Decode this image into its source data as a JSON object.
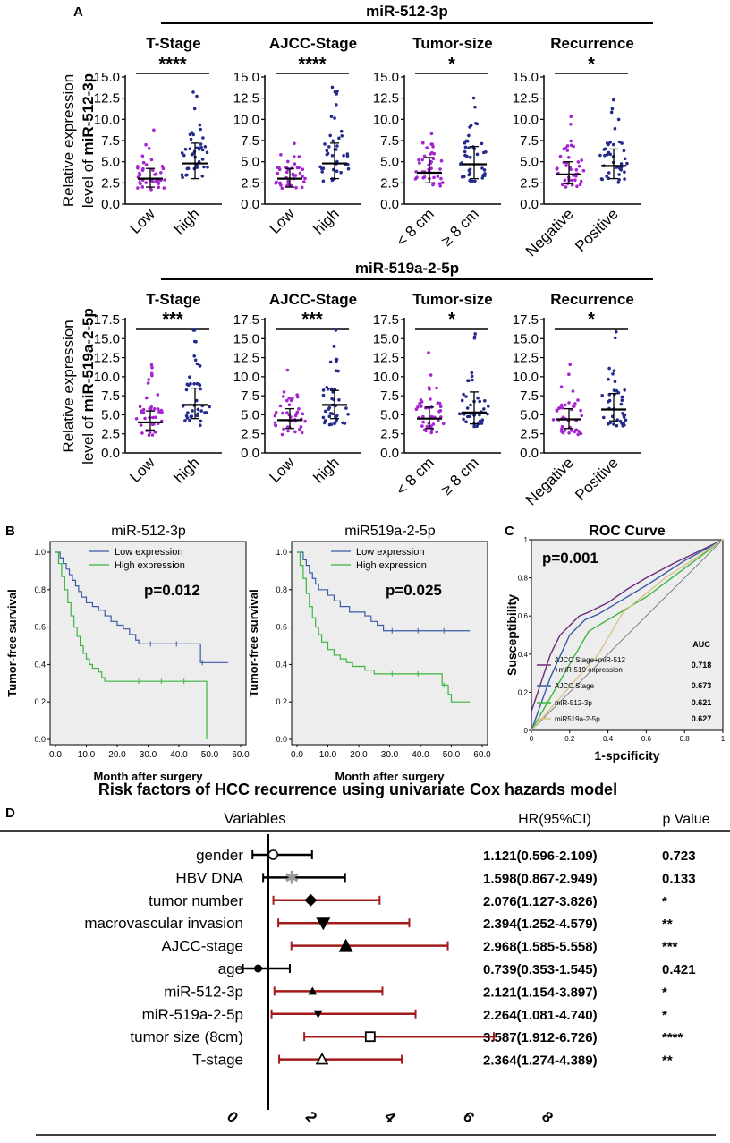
{
  "panel_labels": {
    "a": "A",
    "b": "B",
    "c": "C",
    "d": "D"
  },
  "panel_a": {
    "rows": [
      {
        "title": "miR-512-3p",
        "ylabel_line1": "Relative expression",
        "ylabel_prefix": "level of ",
        "ylabel_bold": "miR-512-3p",
        "yticks": [
          "0.0",
          "2.5",
          "5.0",
          "7.5",
          "10.0",
          "12.5",
          "15.0"
        ],
        "ymax": 15,
        "groups": [
          {
            "title": "T-Stage",
            "cats": [
              "Low",
              "high"
            ],
            "sig": "****",
            "medians": [
              3.0,
              4.8
            ],
            "lo": [
              2.0,
              3.0
            ],
            "hi": [
              4.2,
              7.2
            ]
          },
          {
            "title": "AJCC-Stage",
            "cats": [
              "Low",
              "high"
            ],
            "sig": "****",
            "medians": [
              3.0,
              4.8
            ],
            "lo": [
              2.0,
              3.0
            ],
            "hi": [
              4.2,
              7.2
            ]
          },
          {
            "title": "Tumor-size",
            "cats": [
              "< 8 cm",
              "≥ 8 cm"
            ],
            "sig": "*",
            "medians": [
              3.7,
              4.7
            ],
            "lo": [
              2.5,
              3.0
            ],
            "hi": [
              5.5,
              6.8
            ]
          },
          {
            "title": "Recurrence",
            "cats": [
              "Negative",
              "Positive"
            ],
            "sig": "*",
            "medians": [
              3.5,
              4.5
            ],
            "lo": [
              2.4,
              3.0
            ],
            "hi": [
              5.0,
              6.5
            ]
          }
        ]
      },
      {
        "title": "miR-519a-2-5p",
        "ylabel_line1": "Relative expression",
        "ylabel_prefix": "level of ",
        "ylabel_bold": "miR-519a-2-5p",
        "yticks": [
          "0.0",
          "2.5",
          "5.0",
          "7.5",
          "10.0",
          "12.5",
          "15.0",
          "17.5"
        ],
        "ymax": 17.5,
        "groups": [
          {
            "title": "T-Stage",
            "cats": [
              "Low",
              "high"
            ],
            "sig": "***",
            "medians": [
              4.0,
              6.3
            ],
            "lo": [
              3.0,
              4.5
            ],
            "hi": [
              5.5,
              8.5
            ]
          },
          {
            "title": "AJCC-Stage",
            "cats": [
              "Low",
              "high"
            ],
            "sig": "***",
            "medians": [
              4.3,
              6.3
            ],
            "lo": [
              3.2,
              4.5
            ],
            "hi": [
              5.8,
              8.2
            ]
          },
          {
            "title": "Tumor-size",
            "cats": [
              "< 8 cm",
              "≥ 8 cm"
            ],
            "sig": "*",
            "medians": [
              4.5,
              5.3
            ],
            "lo": [
              3.2,
              3.8
            ],
            "hi": [
              6.0,
              8.0
            ]
          },
          {
            "title": "Recurrence",
            "cats": [
              "Negative",
              "Positive"
            ],
            "sig": "*",
            "medians": [
              4.4,
              5.7
            ],
            "lo": [
              3.2,
              4.2
            ],
            "hi": [
              5.8,
              7.8
            ]
          }
        ]
      }
    ]
  },
  "panel_b": {
    "ylabel": "Tumor-free survival",
    "xlabel": "Month after surgery",
    "yticks": [
      "0.0",
      "0.2",
      "0.4",
      "0.6",
      "0.8",
      "1.0"
    ],
    "xticks": [
      "0.0",
      "10.0",
      "20.0",
      "30.0",
      "40.0",
      "50.0",
      "60.0"
    ],
    "plots": [
      {
        "title": "miR-512-3p",
        "p": "p=0.012",
        "series": [
          {
            "name": "Low expression",
            "color": "#3a5aa8",
            "steps": [
              [
                0,
                1.0
              ],
              [
                1.5,
                0.97
              ],
              [
                2.5,
                0.94
              ],
              [
                3.5,
                0.91
              ],
              [
                4.5,
                0.88
              ],
              [
                5.5,
                0.85
              ],
              [
                6.5,
                0.82
              ],
              [
                7.5,
                0.79
              ],
              [
                8.5,
                0.76
              ],
              [
                10,
                0.73
              ],
              [
                12,
                0.71
              ],
              [
                14,
                0.69
              ],
              [
                16,
                0.66
              ],
              [
                18,
                0.63
              ],
              [
                20,
                0.61
              ],
              [
                22,
                0.59
              ],
              [
                24,
                0.56
              ],
              [
                26,
                0.53
              ],
              [
                27,
                0.51
              ],
              [
                47,
                0.41
              ],
              [
                56,
                0.41
              ]
            ]
          },
          {
            "name": "High expression",
            "color": "#3db53d",
            "steps": [
              [
                0,
                1.0
              ],
              [
                1,
                0.94
              ],
              [
                2,
                0.87
              ],
              [
                3,
                0.8
              ],
              [
                4,
                0.73
              ],
              [
                5,
                0.66
              ],
              [
                6,
                0.6
              ],
              [
                7,
                0.55
              ],
              [
                8,
                0.5
              ],
              [
                9,
                0.46
              ],
              [
                10,
                0.43
              ],
              [
                11,
                0.4
              ],
              [
                12,
                0.38
              ],
              [
                14,
                0.36
              ],
              [
                15,
                0.33
              ],
              [
                16,
                0.31
              ],
              [
                48,
                0.31
              ],
              [
                49,
                0.0
              ]
            ]
          }
        ]
      },
      {
        "title": "miR519a-2-5p",
        "p": "p=0.025",
        "series": [
          {
            "name": "Low expression",
            "color": "#3a5aa8",
            "steps": [
              [
                0,
                1.0
              ],
              [
                2,
                0.96
              ],
              [
                3,
                0.93
              ],
              [
                4,
                0.89
              ],
              [
                5,
                0.86
              ],
              [
                6,
                0.83
              ],
              [
                7,
                0.8
              ],
              [
                10,
                0.77
              ],
              [
                12,
                0.74
              ],
              [
                14,
                0.71
              ],
              [
                17,
                0.68
              ],
              [
                22,
                0.66
              ],
              [
                24,
                0.63
              ],
              [
                26,
                0.61
              ],
              [
                28,
                0.58
              ],
              [
                56,
                0.58
              ]
            ]
          },
          {
            "name": "High expression",
            "color": "#3db53d",
            "steps": [
              [
                0,
                1.0
              ],
              [
                1,
                0.93
              ],
              [
                2,
                0.86
              ],
              [
                3,
                0.78
              ],
              [
                4,
                0.71
              ],
              [
                5,
                0.65
              ],
              [
                6,
                0.6
              ],
              [
                7,
                0.56
              ],
              [
                8,
                0.52
              ],
              [
                10,
                0.48
              ],
              [
                12,
                0.45
              ],
              [
                14,
                0.43
              ],
              [
                16,
                0.41
              ],
              [
                18,
                0.39
              ],
              [
                22,
                0.37
              ],
              [
                25,
                0.35
              ],
              [
                45,
                0.35
              ],
              [
                47,
                0.29
              ],
              [
                49,
                0.24
              ],
              [
                50,
                0.2
              ],
              [
                56,
                0.2
              ]
            ]
          }
        ]
      }
    ]
  },
  "panel_c": {
    "title": "ROC Curve",
    "p": "p=0.001",
    "ylabel": "Susceptibility",
    "xlabel": "1-spcificity",
    "ticks": [
      "0",
      "0.2",
      "0.4",
      "0.6",
      "0.8",
      "1"
    ],
    "auc_header": "AUC",
    "series": [
      {
        "name": "AJCC Stage+miR-512",
        "name2": "+miR-519 expression",
        "auc": "0.718",
        "color": "#6a2a7a",
        "pts": [
          [
            0,
            0
          ],
          [
            0,
            0.1
          ],
          [
            0.05,
            0.25
          ],
          [
            0.1,
            0.4
          ],
          [
            0.15,
            0.5
          ],
          [
            0.2,
            0.55
          ],
          [
            0.25,
            0.6
          ],
          [
            0.3,
            0.62
          ],
          [
            0.4,
            0.67
          ],
          [
            0.5,
            0.74
          ],
          [
            0.6,
            0.8
          ],
          [
            0.75,
            0.88
          ],
          [
            1,
            1
          ]
        ]
      },
      {
        "name": "AJCC Stage",
        "auc": "0.673",
        "color": "#3a5aa8",
        "pts": [
          [
            0,
            0
          ],
          [
            0.1,
            0.28
          ],
          [
            0.2,
            0.5
          ],
          [
            0.28,
            0.58
          ],
          [
            0.35,
            0.61
          ],
          [
            0.45,
            0.67
          ],
          [
            0.6,
            0.76
          ],
          [
            0.8,
            0.89
          ],
          [
            1,
            1
          ]
        ]
      },
      {
        "name": "miR-512-3p",
        "auc": "0.621",
        "color": "#3db53d",
        "pts": [
          [
            0,
            0
          ],
          [
            0.3,
            0.52
          ],
          [
            0.6,
            0.7
          ],
          [
            1,
            1
          ]
        ]
      },
      {
        "name": "miR519a-2-5p",
        "auc": "0.627",
        "color": "#d8c48a",
        "pts": [
          [
            0,
            0
          ],
          [
            0.35,
            0.4
          ],
          [
            0.48,
            0.62
          ],
          [
            0.7,
            0.8
          ],
          [
            1,
            1
          ]
        ]
      }
    ]
  },
  "panel_d": {
    "title": "Risk factors of HCC recurrence using univariate  Cox hazards model",
    "col_variables": "Variables",
    "col_hr": "HR(95%CI)",
    "col_p": "p Value",
    "xticks": [
      "0",
      "2",
      "4",
      "6",
      "8"
    ],
    "rows": [
      {
        "label": "gender",
        "hr": 1.121,
        "lo": 0.596,
        "hi": 2.109,
        "hr_text": "1.121(0.596-2.109)",
        "p": "0.723",
        "marker": "circle-open",
        "color": "#000000",
        "fill": "#000000"
      },
      {
        "label": "HBV DNA",
        "hr": 1.598,
        "lo": 0.867,
        "hi": 2.949,
        "hr_text": "1.598(0.867-2.949)",
        "p": "0.133",
        "marker": "star",
        "color": "#000000",
        "fill": "#9a9a9a"
      },
      {
        "label": "tumor number",
        "hr": 2.076,
        "lo": 1.127,
        "hi": 3.826,
        "hr_text": "2.076(1.127-3.826)",
        "p": "*",
        "marker": "diamond",
        "color": "#a31a1a",
        "fill": "#000000"
      },
      {
        "label": "macrovascular invasion",
        "hr": 2.394,
        "lo": 1.252,
        "hi": 4.579,
        "hr_text": "2.394(1.252-4.579)",
        "p": "**",
        "marker": "tri-down",
        "color": "#a31a1a",
        "fill": "#000000"
      },
      {
        "label": "AJCC-stage",
        "hr": 2.968,
        "lo": 1.585,
        "hi": 5.558,
        "hr_text": "2.968(1.585-5.558)",
        "p": "***",
        "marker": "tri-up",
        "color": "#a31a1a",
        "fill": "#000000"
      },
      {
        "label": "age",
        "hr": 0.739,
        "lo": 0.353,
        "hi": 1.545,
        "hr_text": "0.739(0.353-1.545)",
        "p": "0.421",
        "marker": "circle",
        "color": "#000000",
        "fill": "#000000"
      },
      {
        "label": "miR-512-3p",
        "hr": 2.121,
        "lo": 1.154,
        "hi": 3.897,
        "hr_text": "2.121(1.154-3.897)",
        "p": "*",
        "marker": "tri-up-small",
        "color": "#a31a1a",
        "fill": "#000000"
      },
      {
        "label": "miR-519a-2-5p",
        "hr": 2.264,
        "lo": 1.081,
        "hi": 4.74,
        "hr_text": "2.264(1.081-4.740)",
        "p": "*",
        "marker": "tri-down-small",
        "color": "#a31a1a",
        "fill": "#000000"
      },
      {
        "label": "tumor size (8cm)",
        "hr": 3.587,
        "lo": 1.912,
        "hi": 6.726,
        "hr_text": "3.587(1.912-6.726)",
        "p": "****",
        "marker": "square-open",
        "color": "#a31a1a",
        "fill": "#000000"
      },
      {
        "label": "T-stage",
        "hr": 2.364,
        "lo": 1.274,
        "hi": 4.389,
        "hr_text": "2.364(1.274-4.389)",
        "p": "**",
        "marker": "tri-up-open",
        "color": "#a31a1a",
        "fill": "#000000"
      }
    ]
  },
  "colors": {
    "dots_purple": "#a424d0",
    "dots_navy": "#232b8c",
    "bg_gray": "#ededed",
    "median": "#000000"
  }
}
